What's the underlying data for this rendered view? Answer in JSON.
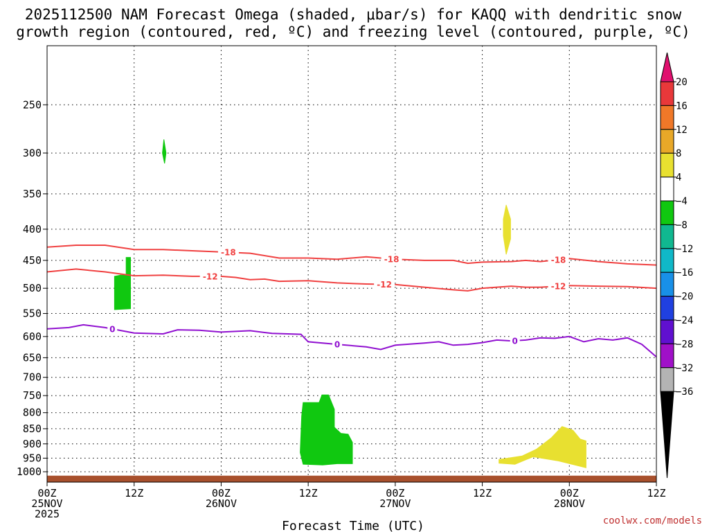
{
  "chart_data": {
    "type": "heatmap",
    "title_line1": "2025112500 NAM Forecast Omega (shaded, μbar/s) for KAQQ with dendritic snow",
    "title_line2": "growth region (contoured, red, ºC) and freezing level (contoured, purple, ºC)",
    "xlabel": "Forecast Time (UTC)",
    "credit": "coolwx.com/models",
    "xlim": [
      0,
      84
    ],
    "ylim": [
      1040,
      200
    ],
    "x_ticks": [
      {
        "x": 0,
        "l1": "00Z",
        "l2": "25NOV",
        "l3": "2025"
      },
      {
        "x": 12,
        "l1": "12Z",
        "l2": "",
        "l3": ""
      },
      {
        "x": 24,
        "l1": "00Z",
        "l2": "26NOV",
        "l3": ""
      },
      {
        "x": 36,
        "l1": "12Z",
        "l2": "",
        "l3": ""
      },
      {
        "x": 48,
        "l1": "00Z",
        "l2": "27NOV",
        "l3": ""
      },
      {
        "x": 60,
        "l1": "12Z",
        "l2": "",
        "l3": ""
      },
      {
        "x": 72,
        "l1": "00Z",
        "l2": "28NOV",
        "l3": ""
      },
      {
        "x": 84,
        "l1": "12Z",
        "l2": "",
        "l3": ""
      }
    ],
    "y_ticks": [
      250,
      300,
      350,
      400,
      450,
      500,
      550,
      600,
      650,
      700,
      750,
      800,
      850,
      900,
      950,
      1000
    ],
    "colorbar": {
      "ticks": [
        "20",
        "16",
        "12",
        "8",
        "4",
        "−4",
        "−8",
        "−12",
        "−16",
        "−20",
        "−24",
        "−28",
        "−32",
        "−36"
      ],
      "colors": [
        "#e0106e",
        "#e8383a",
        "#f07828",
        "#e8a828",
        "#e8e030",
        "#ffffff",
        "#10c810",
        "#10b890",
        "#10b8c8",
        "#1890e8",
        "#2040e0",
        "#6010d0",
        "#a010c8",
        "#b4b4b4",
        "#000000"
      ]
    },
    "series": [
      {
        "name": "-18",
        "color": "#f04040",
        "label": "-18",
        "points": [
          [
            0,
            428
          ],
          [
            4,
            425
          ],
          [
            8,
            425
          ],
          [
            12,
            432
          ],
          [
            16,
            432
          ],
          [
            20,
            434
          ],
          [
            24,
            436
          ],
          [
            28,
            438
          ],
          [
            32,
            446
          ],
          [
            36,
            446
          ],
          [
            40,
            448
          ],
          [
            44,
            444
          ],
          [
            48,
            448
          ],
          [
            52,
            450
          ],
          [
            56,
            450
          ],
          [
            58,
            455
          ],
          [
            60,
            453
          ],
          [
            64,
            452
          ],
          [
            66,
            450
          ],
          [
            68,
            452
          ],
          [
            72,
            447
          ],
          [
            76,
            452
          ],
          [
            80,
            456
          ],
          [
            84,
            458
          ]
        ],
        "label_x": [
          25,
          47.5,
          70.5
        ]
      },
      {
        "name": "-12",
        "color": "#f04040",
        "label": "-12",
        "points": [
          [
            0,
            470
          ],
          [
            4,
            465
          ],
          [
            8,
            470
          ],
          [
            12,
            477
          ],
          [
            16,
            476
          ],
          [
            20,
            478
          ],
          [
            24,
            478
          ],
          [
            26,
            480
          ],
          [
            28,
            484
          ],
          [
            30,
            483
          ],
          [
            32,
            487
          ],
          [
            36,
            486
          ],
          [
            40,
            490
          ],
          [
            44,
            492
          ],
          [
            48,
            493
          ],
          [
            52,
            498
          ],
          [
            56,
            503
          ],
          [
            58,
            505
          ],
          [
            60,
            500
          ],
          [
            64,
            496
          ],
          [
            66,
            498
          ],
          [
            68,
            498
          ],
          [
            72,
            495
          ],
          [
            76,
            496
          ],
          [
            80,
            497
          ],
          [
            84,
            500
          ]
        ],
        "label_x": [
          22.5,
          46.5,
          70.5
        ]
      },
      {
        "name": "0",
        "color": "#9010d0",
        "label": "0",
        "points": [
          [
            0,
            583
          ],
          [
            3,
            580
          ],
          [
            5,
            574
          ],
          [
            8,
            580
          ],
          [
            12,
            592
          ],
          [
            16,
            594
          ],
          [
            18,
            585
          ],
          [
            21,
            586
          ],
          [
            24,
            590
          ],
          [
            28,
            587
          ],
          [
            31,
            593
          ],
          [
            35,
            595
          ],
          [
            36,
            612
          ],
          [
            40,
            618
          ],
          [
            44,
            624
          ],
          [
            46,
            630
          ],
          [
            48,
            620
          ],
          [
            52,
            615
          ],
          [
            54,
            612
          ],
          [
            56,
            620
          ],
          [
            58,
            618
          ],
          [
            60,
            614
          ],
          [
            62,
            608
          ],
          [
            64,
            610
          ],
          [
            66,
            608
          ],
          [
            68,
            603
          ],
          [
            70,
            604
          ],
          [
            72,
            600
          ],
          [
            74,
            612
          ],
          [
            76,
            605
          ],
          [
            78,
            608
          ],
          [
            80,
            603
          ],
          [
            82,
            618
          ],
          [
            84,
            648
          ]
        ],
        "label_x": [
          9,
          40,
          64.5
        ]
      }
    ],
    "shaded_regions": [
      {
        "name": "omega-region-a",
        "color": "#10c810",
        "value_range": "-4 to -8",
        "points": [
          [
            16.1,
            285
          ],
          [
            16.4,
            300
          ],
          [
            16.2,
            312
          ],
          [
            15.9,
            300
          ]
        ]
      },
      {
        "name": "omega-region-b",
        "color": "#10c810",
        "value_range": "-4 to -8",
        "points": [
          [
            10.1,
            476
          ],
          [
            10.9,
            476
          ],
          [
            10.9,
            445
          ],
          [
            11.5,
            445
          ],
          [
            11.5,
            540
          ],
          [
            9.3,
            542
          ],
          [
            9.3,
            478
          ]
        ]
      },
      {
        "name": "omega-region-c",
        "color": "#10c810",
        "value_range": "-4 to -8",
        "points": [
          [
            35.3,
            770
          ],
          [
            37.5,
            770
          ],
          [
            37.9,
            748
          ],
          [
            38.8,
            748
          ],
          [
            39.6,
            790
          ],
          [
            39.6,
            845
          ],
          [
            40.5,
            865
          ],
          [
            41.5,
            868
          ],
          [
            42.1,
            895
          ],
          [
            42.1,
            970
          ],
          [
            40.0,
            970
          ],
          [
            38.0,
            975
          ],
          [
            35.3,
            972
          ],
          [
            34.9,
            930
          ],
          [
            35.1,
            810
          ]
        ]
      },
      {
        "name": "omega-region-d",
        "color": "#e8e030",
        "value_range": "4 to 8",
        "points": [
          [
            63.3,
            365
          ],
          [
            63.9,
            385
          ],
          [
            63.9,
            415
          ],
          [
            63.3,
            440
          ],
          [
            62.9,
            410
          ],
          [
            62.9,
            385
          ]
        ]
      },
      {
        "name": "omega-region-e",
        "color": "#e8e030",
        "value_range": "4 to 8",
        "points": [
          [
            62.3,
            955
          ],
          [
            65.5,
            942
          ],
          [
            67.5,
            918
          ],
          [
            69.5,
            880
          ],
          [
            71.0,
            843
          ],
          [
            72.5,
            855
          ],
          [
            73.5,
            884
          ],
          [
            74.3,
            890
          ],
          [
            74.3,
            985
          ],
          [
            70.5,
            960
          ],
          [
            67.0,
            945
          ],
          [
            64.5,
            972
          ],
          [
            62.3,
            968
          ]
        ]
      }
    ],
    "surface": {
      "name": "ground",
      "color": "#a8502c",
      "top_hpa": 1015
    }
  }
}
